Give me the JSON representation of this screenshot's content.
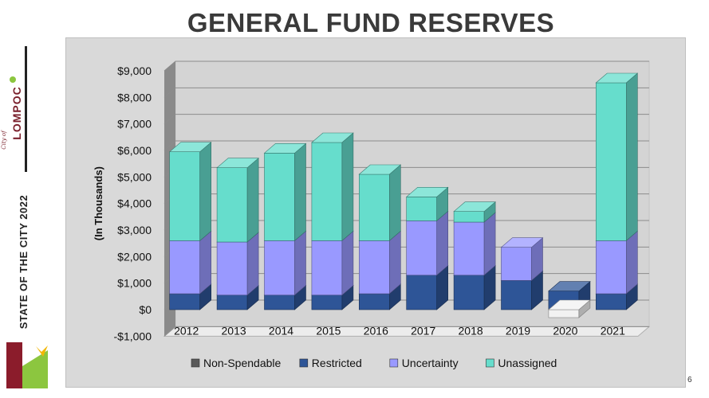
{
  "slide": {
    "title": "GENERAL FUND RESERVES",
    "sidebar_title": "STATE OF THE CITY 2022",
    "logo_text": "LOMPOC",
    "logo_script": "City of",
    "page_number": "6"
  },
  "chart_data": {
    "type": "bar",
    "stacked": true,
    "title": "GENERAL FUND RESERVES",
    "xlabel": "",
    "ylabel": "(In Thousands)",
    "ylim": [
      -1000,
      9000
    ],
    "yticks": [
      -1000,
      0,
      1000,
      2000,
      3000,
      4000,
      5000,
      6000,
      7000,
      8000,
      9000
    ],
    "ytick_labels": [
      "-$1,000",
      "$0",
      "$1,000",
      "$2,000",
      "$3,000",
      "$4,000",
      "$5,000",
      "$6,000",
      "$7,000",
      "$8,000",
      "$9,000"
    ],
    "categories": [
      "2012",
      "2013",
      "2014",
      "2015",
      "2016",
      "2017",
      "2018",
      "2019",
      "2020",
      "2021"
    ],
    "series": [
      {
        "name": "Non-Spendable",
        "color": "#595959",
        "values": [
          0,
          0,
          0,
          0,
          0,
          0,
          0,
          0,
          0,
          0
        ]
      },
      {
        "name": "Restricted",
        "color": "#2e5597",
        "values": [
          600,
          550,
          550,
          550,
          600,
          1300,
          1300,
          1100,
          700,
          600
        ]
      },
      {
        "name": "Uncertainty",
        "color": "#9999ff",
        "values": [
          2000,
          2000,
          2050,
          2050,
          2000,
          2050,
          2000,
          1250,
          0,
          2000
        ]
      },
      {
        "name": "Unassigned",
        "color": "#66ddcc",
        "values": [
          3350,
          2800,
          3300,
          3700,
          2500,
          900,
          400,
          0,
          -300,
          5950
        ]
      }
    ],
    "grid": true,
    "legend": "bottom"
  }
}
